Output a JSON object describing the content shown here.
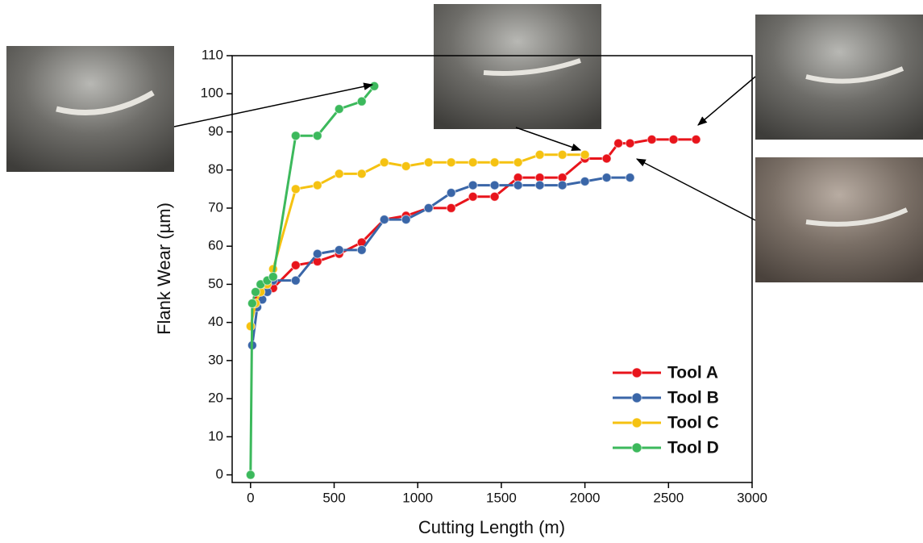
{
  "chart_data": {
    "type": "line",
    "x_label": "Cutting Length (m)",
    "y_label": "Flank Wear (µm)",
    "xlim": [
      -110,
      3000
    ],
    "xticks": [
      0,
      500,
      1000,
      1500,
      2000,
      2500,
      3000
    ],
    "ylim": [
      -2,
      110
    ],
    "yticks": [
      0,
      10,
      20,
      30,
      40,
      50,
      60,
      70,
      80,
      90,
      100,
      110
    ],
    "legend": "lower right",
    "series": [
      {
        "name": "Tool A",
        "color": "#e8141b",
        "x": [
          20,
          40,
          100,
          135,
          270,
          400,
          530,
          665,
          800,
          930,
          1065,
          1200,
          1330,
          1460,
          1600,
          1730,
          1865,
          2000,
          2130,
          2200,
          2270,
          2400,
          2530,
          2665
        ],
        "values": [
          45,
          47,
          49,
          49,
          55,
          56,
          58,
          61,
          67,
          68,
          70,
          70,
          73,
          73,
          78,
          78,
          78,
          83,
          83,
          87,
          87,
          88,
          88,
          88
        ]
      },
      {
        "name": "Tool B",
        "color": "#3a66a8",
        "x": [
          10,
          40,
          70,
          100,
          135,
          270,
          400,
          530,
          665,
          800,
          930,
          1065,
          1200,
          1330,
          1460,
          1600,
          1730,
          1865,
          2000,
          2130,
          2270
        ],
        "values": [
          34,
          44,
          46,
          48,
          51,
          51,
          58,
          59,
          59,
          67,
          67,
          70,
          74,
          76,
          76,
          76,
          76,
          76,
          77,
          78,
          78
        ]
      },
      {
        "name": "Tool C",
        "color": "#f5c211",
        "x": [
          0,
          30,
          60,
          100,
          135,
          270,
          400,
          530,
          665,
          800,
          930,
          1065,
          1200,
          1330,
          1460,
          1600,
          1730,
          1865,
          2000
        ],
        "values": [
          39,
          45,
          48,
          50,
          54,
          75,
          76,
          79,
          79,
          82,
          81,
          82,
          82,
          82,
          82,
          82,
          84,
          84,
          84
        ]
      },
      {
        "name": "Tool D",
        "color": "#3cb95c",
        "x": [
          0,
          10,
          30,
          60,
          100,
          135,
          270,
          400,
          530,
          665,
          740
        ],
        "values": [
          0,
          45,
          48,
          50,
          51,
          52,
          89,
          89,
          96,
          98,
          102
        ]
      }
    ]
  }
}
